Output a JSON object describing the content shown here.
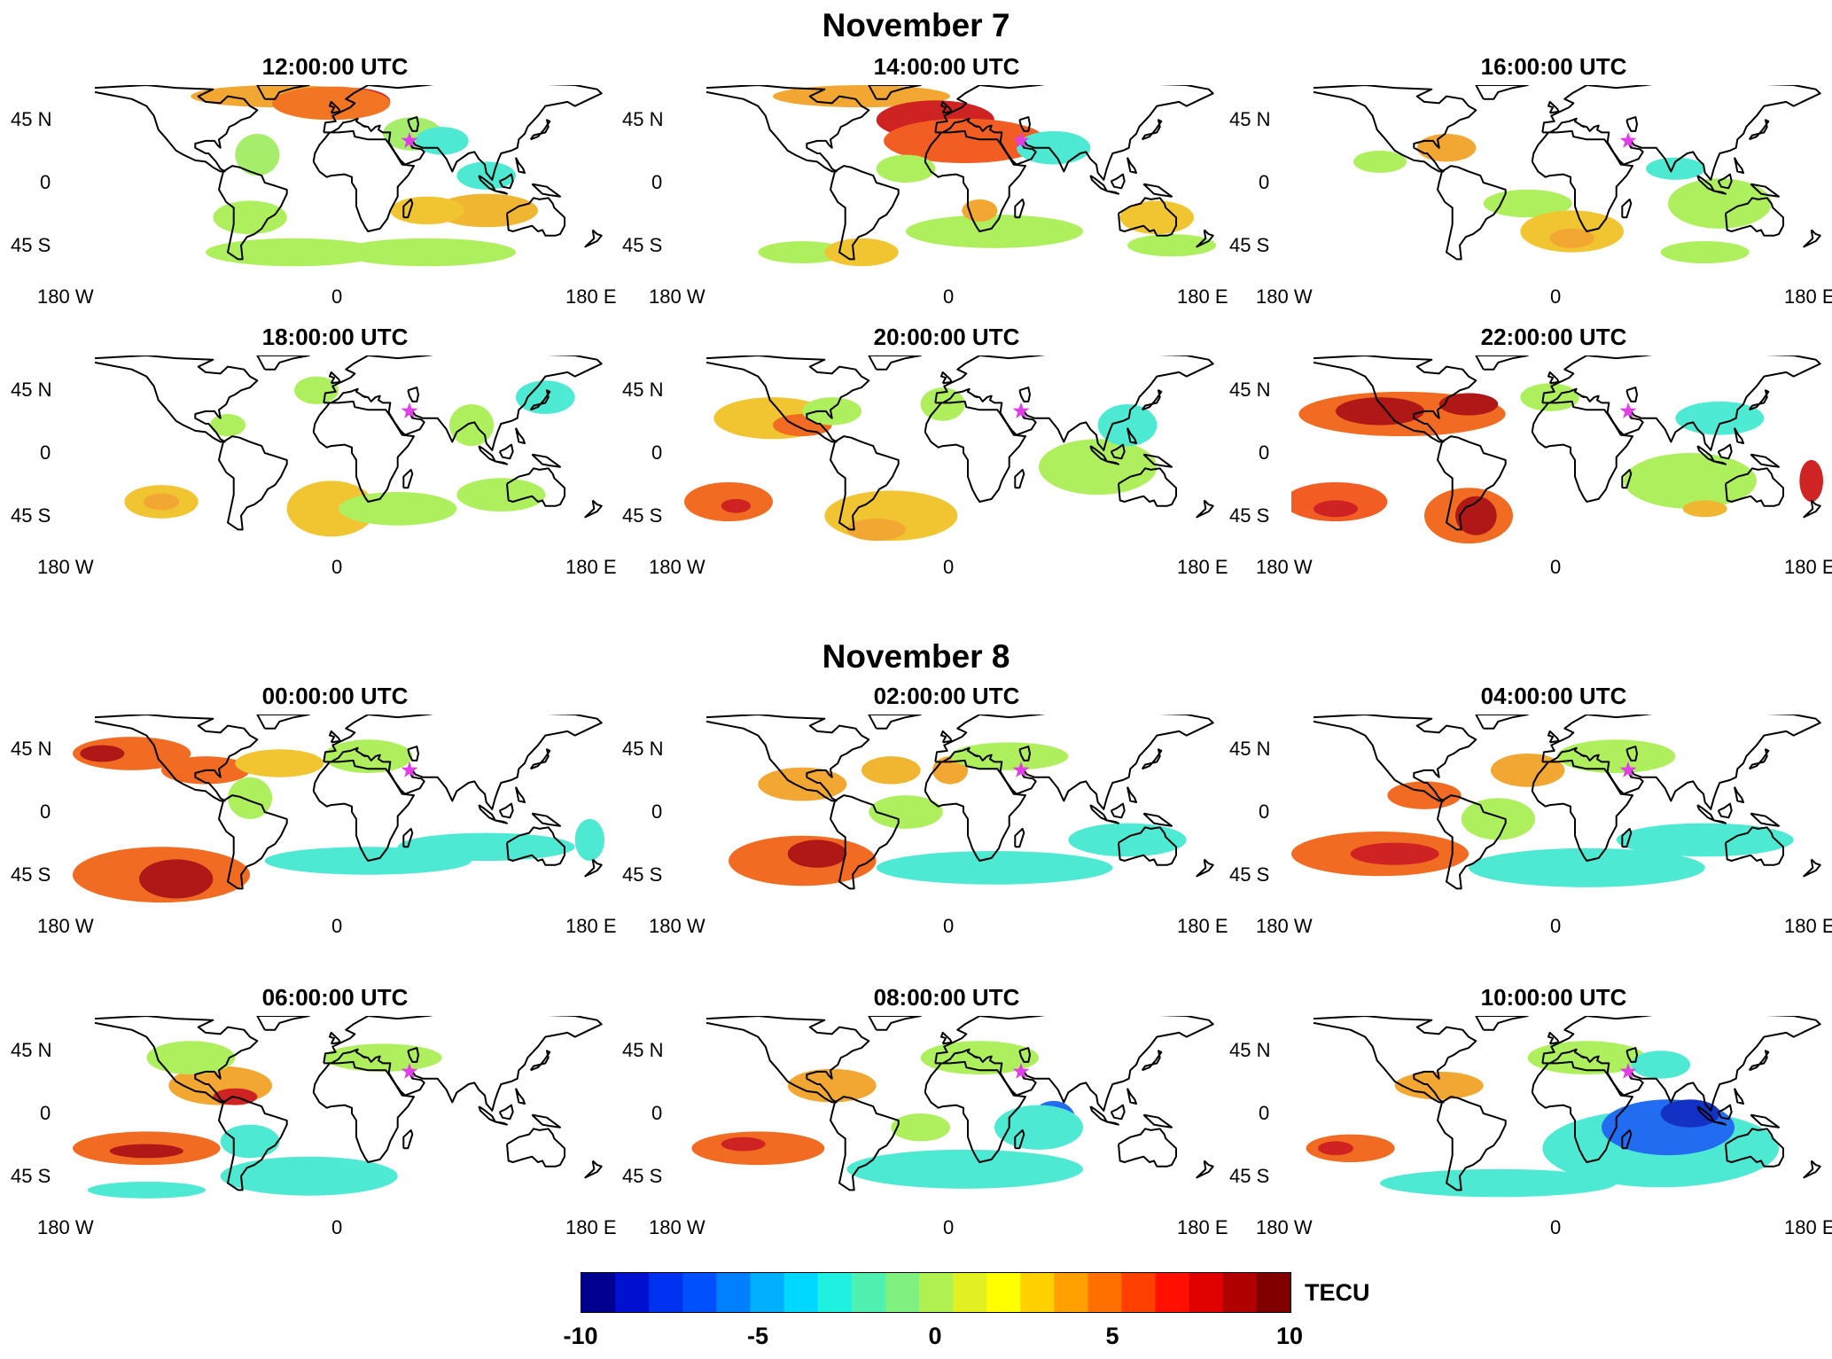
{
  "figure": {
    "groups": [
      {
        "title": "November 7",
        "panels": [
          {
            "title": "12:00:00 UTC",
            "blobs": [
              [
                "#f0a020",
                -40,
                62,
                60,
                8
              ],
              [
                "#cc1010",
                10,
                58,
                25,
                10
              ],
              [
                "#f06a10",
                -5,
                57,
                40,
                12
              ],
              [
                "#a0ec60",
                -55,
                20,
                15,
                15
              ],
              [
                "#a0ec60",
                50,
                35,
                20,
                12
              ],
              [
                "#40e8d0",
                70,
                30,
                18,
                10
              ],
              [
                "#a8ee50",
                -60,
                -25,
                25,
                12
              ],
              [
                "#a8ee50",
                -30,
                -50,
                60,
                10
              ],
              [
                "#a8ee50",
                60,
                -50,
                60,
                10
              ],
              [
                "#f0b020",
                100,
                -20,
                35,
                12
              ],
              [
                "#f0c020",
                60,
                -20,
                25,
                10
              ],
              [
                "#40e8d0",
                100,
                5,
                20,
                10
              ]
            ]
          },
          {
            "title": "14:00:00 UTC",
            "blobs": [
              [
                "#f0a020",
                -60,
                62,
                60,
                8
              ],
              [
                "#cc1010",
                -10,
                45,
                40,
                14
              ],
              [
                "#f05010",
                10,
                30,
                55,
                16
              ],
              [
                "#a8ee50",
                -30,
                10,
                20,
                10
              ],
              [
                "#a8ee50",
                -100,
                -50,
                30,
                8
              ],
              [
                "#f0c020",
                -60,
                -50,
                25,
                10
              ],
              [
                "#a8ee50",
                30,
                -35,
                60,
                12
              ],
              [
                "#f0a020",
                20,
                -20,
                12,
                8
              ],
              [
                "#f0c020",
                140,
                -25,
                25,
                12
              ],
              [
                "#a8ee50",
                150,
                -45,
                30,
                8
              ],
              [
                "#40e8d0",
                70,
                25,
                25,
                12
              ]
            ]
          },
          {
            "title": "16:00:00 UTC",
            "blobs": [
              [
                "#f0a020",
                -75,
                25,
                20,
                10
              ],
              [
                "#a8ee50",
                -120,
                15,
                18,
                8
              ],
              [
                "#a8ee50",
                -20,
                -15,
                30,
                10
              ],
              [
                "#f0c020",
                10,
                -35,
                35,
                15
              ],
              [
                "#f0a020",
                10,
                -40,
                15,
                7
              ],
              [
                "#a8ee50",
                110,
                -15,
                35,
                18
              ],
              [
                "#40e8d0",
                80,
                10,
                20,
                8
              ],
              [
                "#a8ee50",
                100,
                -50,
                30,
                8
              ]
            ]
          },
          {
            "title": "18:00:00 UTC",
            "blobs": [
              [
                "#a8ee50",
                -15,
                45,
                15,
                10
              ],
              [
                "#a8ee50",
                -75,
                20,
                12,
                8
              ],
              [
                "#f0c020",
                -120,
                -35,
                25,
                12
              ],
              [
                "#f0a020",
                -120,
                -35,
                12,
                6
              ],
              [
                "#f0c020",
                -5,
                -40,
                30,
                20
              ],
              [
                "#a8ee50",
                40,
                -40,
                40,
                12
              ],
              [
                "#a8ee50",
                110,
                -30,
                30,
                12
              ],
              [
                "#40e8d0",
                140,
                40,
                20,
                12
              ],
              [
                "#a8ee50",
                90,
                20,
                15,
                15
              ]
            ]
          },
          {
            "title": "20:00:00 UTC",
            "blobs": [
              [
                "#f0c020",
                -120,
                25,
                40,
                15
              ],
              [
                "#f06010",
                -100,
                20,
                20,
                8
              ],
              [
                "#a8ee50",
                -80,
                30,
                20,
                10
              ],
              [
                "#f06010",
                -150,
                -35,
                30,
                14
              ],
              [
                "#cc1010",
                -145,
                -38,
                10,
                5
              ],
              [
                "#f0c020",
                -40,
                -45,
                45,
                18
              ],
              [
                "#f0a020",
                -50,
                -55,
                20,
                8
              ],
              [
                "#a8ee50",
                100,
                -10,
                40,
                20
              ],
              [
                "#40e8d0",
                120,
                20,
                20,
                15
              ],
              [
                "#a8ee50",
                -5,
                35,
                15,
                12
              ]
            ]
          },
          {
            "title": "22:00:00 UTC",
            "blobs": [
              [
                "#f06010",
                -105,
                28,
                70,
                16
              ],
              [
                "#aa0505",
                -120,
                30,
                30,
                10
              ],
              [
                "#aa0505",
                -60,
                35,
                20,
                8
              ],
              [
                "#f05010",
                -150,
                -35,
                35,
                14
              ],
              [
                "#cc1010",
                -150,
                -40,
                15,
                6
              ],
              [
                "#f06010",
                -60,
                -45,
                30,
                20
              ],
              [
                "#aa0505",
                -55,
                -45,
                14,
                14
              ],
              [
                "#a8ee50",
                90,
                -20,
                45,
                20
              ],
              [
                "#f0b020",
                100,
                -40,
                15,
                6
              ],
              [
                "#cc1010",
                172,
                -20,
                8,
                15
              ],
              [
                "#40e8d0",
                110,
                25,
                30,
                12
              ],
              [
                "#a8ee50",
                -5,
                40,
                20,
                10
              ]
            ]
          }
        ]
      },
      {
        "title": "November 8",
        "panels": [
          {
            "title": "00:00:00 UTC",
            "blobs": [
              [
                "#f06010",
                -140,
                42,
                40,
                12
              ],
              [
                "#aa0505",
                -160,
                42,
                15,
                6
              ],
              [
                "#f06010",
                -90,
                30,
                30,
                10
              ],
              [
                "#f0c020",
                -40,
                35,
                30,
                10
              ],
              [
                "#a8ee50",
                20,
                40,
                30,
                12
              ],
              [
                "#f06010",
                -120,
                -45,
                60,
                20
              ],
              [
                "#aa0505",
                -110,
                -48,
                25,
                14
              ],
              [
                "#40e8d0",
                20,
                -35,
                70,
                10
              ],
              [
                "#40e8d0",
                100,
                -25,
                60,
                10
              ],
              [
                "#a8ee50",
                -60,
                10,
                15,
                15
              ],
              [
                "#40e8d0",
                170,
                -20,
                10,
                15
              ]
            ]
          },
          {
            "title": "02:00:00 UTC",
            "blobs": [
              [
                "#f0a020",
                -100,
                20,
                30,
                12
              ],
              [
                "#f06010",
                -100,
                -35,
                50,
                18
              ],
              [
                "#aa0505",
                -90,
                -30,
                20,
                10
              ],
              [
                "#f0b020",
                -40,
                30,
                20,
                10
              ],
              [
                "#f0a020",
                0,
                30,
                12,
                10
              ],
              [
                "#a8ee50",
                -30,
                0,
                25,
                12
              ],
              [
                "#40e8d0",
                30,
                -40,
                80,
                12
              ],
              [
                "#40e8d0",
                120,
                -20,
                40,
                12
              ],
              [
                "#a8ee50",
                40,
                40,
                40,
                10
              ]
            ]
          },
          {
            "title": "04:00:00 UTC",
            "blobs": [
              [
                "#f06010",
                -90,
                12,
                25,
                10
              ],
              [
                "#f0a020",
                -20,
                30,
                25,
                12
              ],
              [
                "#f06010",
                -120,
                -30,
                60,
                16
              ],
              [
                "#cc1010",
                -110,
                -30,
                30,
                8
              ],
              [
                "#40e8d0",
                20,
                -40,
                80,
                14
              ],
              [
                "#40e8d0",
                100,
                -20,
                60,
                12
              ],
              [
                "#a8ee50",
                40,
                40,
                40,
                12
              ],
              [
                "#a8ee50",
                -40,
                -5,
                25,
                15
              ]
            ]
          },
          {
            "title": "06:00:00 UTC",
            "blobs": [
              [
                "#f0a020",
                -80,
                20,
                35,
                14
              ],
              [
                "#cc1010",
                -70,
                12,
                15,
                6
              ],
              [
                "#f06010",
                -130,
                -25,
                50,
                12
              ],
              [
                "#aa0505",
                -130,
                -27,
                25,
                5
              ],
              [
                "#40e8d0",
                -20,
                -45,
                60,
                14
              ],
              [
                "#40e8d0",
                -130,
                -55,
                40,
                6
              ],
              [
                "#a8ee50",
                -100,
                40,
                30,
                12
              ],
              [
                "#a8ee50",
                30,
                40,
                40,
                10
              ],
              [
                "#40e8d0",
                -60,
                -20,
                20,
                12
              ]
            ]
          },
          {
            "title": "08:00:00 UTC",
            "blobs": [
              [
                "#f06010",
                -130,
                -25,
                45,
                12
              ],
              [
                "#cc1010",
                -140,
                -22,
                15,
                5
              ],
              [
                "#f0a020",
                -80,
                20,
                30,
                12
              ],
              [
                "#40e8d0",
                10,
                -40,
                80,
                14
              ],
              [
                "#1060f0",
                70,
                -5,
                15,
                14
              ],
              [
                "#40e8d0",
                60,
                -10,
                30,
                16
              ],
              [
                "#a8ee50",
                20,
                40,
                40,
                12
              ],
              [
                "#a8ee50",
                -20,
                -10,
                20,
                10
              ]
            ]
          },
          {
            "title": "10:00:00 UTC",
            "blobs": [
              [
                "#40e8d0",
                70,
                -25,
                80,
                28
              ],
              [
                "#1060f0",
                75,
                -10,
                45,
                20
              ],
              [
                "#0020c0",
                90,
                0,
                20,
                10
              ],
              [
                "#f06010",
                -140,
                -25,
                30,
                10
              ],
              [
                "#cc1010",
                -150,
                -25,
                12,
                5
              ],
              [
                "#f0a020",
                -80,
                20,
                30,
                10
              ],
              [
                "#a8ee50",
                20,
                40,
                40,
                12
              ],
              [
                "#40e8d0",
                -40,
                -50,
                80,
                10
              ],
              [
                "#40e8d0",
                70,
                35,
                20,
                10
              ]
            ]
          }
        ]
      }
    ],
    "x_ticks": [
      "180 W",
      "0",
      "180 E"
    ],
    "y_ticks": [
      "45 N",
      "0",
      "45 S"
    ],
    "marker": {
      "name": "epicenter",
      "lon": 48,
      "lat": 30,
      "color": "#e23ee8"
    },
    "colorbar": {
      "label": "TECU",
      "range": [
        -10,
        10
      ],
      "ticks": [
        "-10",
        "-5",
        "0",
        "5",
        "10"
      ],
      "colors": [
        "#00008f",
        "#0010d0",
        "#0030f0",
        "#0050ff",
        "#0080ff",
        "#00b0ff",
        "#00d8ff",
        "#20f0e0",
        "#50f0b0",
        "#80f080",
        "#b0f050",
        "#e0f020",
        "#ffff00",
        "#ffd000",
        "#ffa000",
        "#ff7000",
        "#ff4000",
        "#ff1000",
        "#e00000",
        "#b00000",
        "#800000"
      ]
    }
  }
}
